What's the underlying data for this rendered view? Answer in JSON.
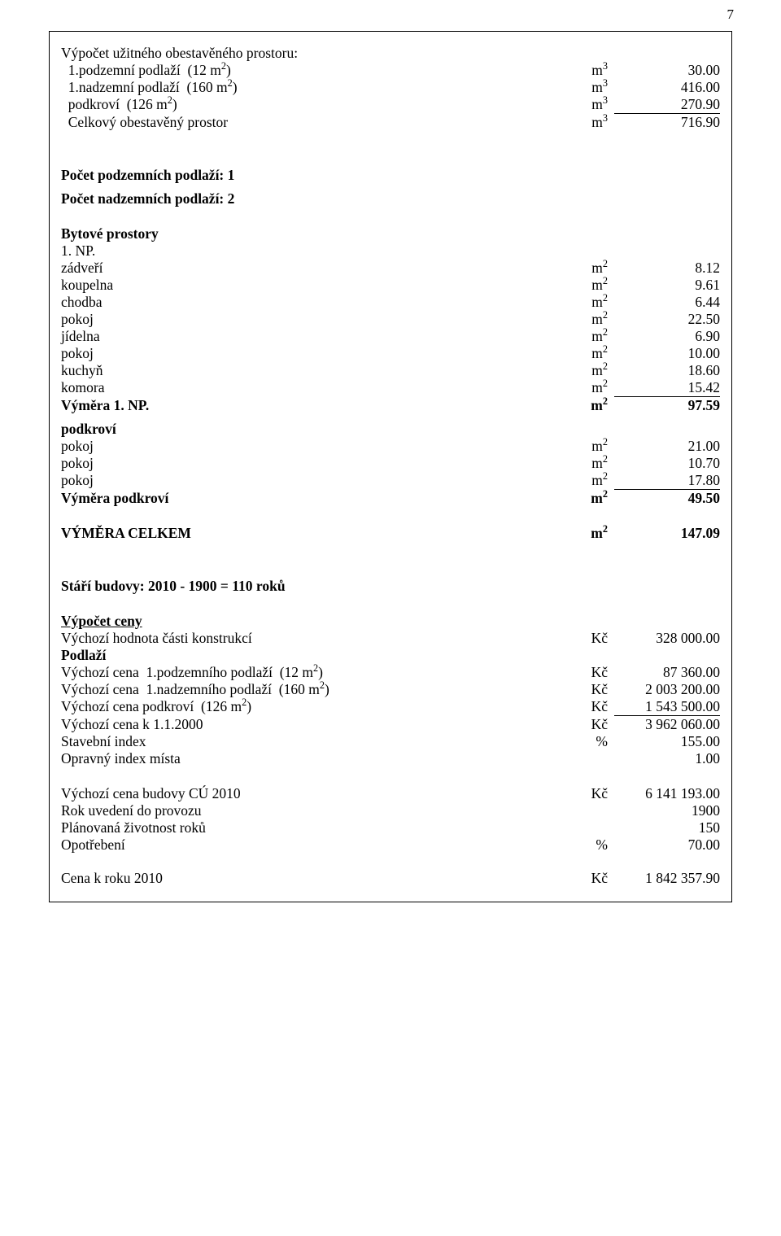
{
  "page_number": "7",
  "section1": {
    "title": "Výpočet užitného obestavěného prostoru:",
    "rows": [
      {
        "label": "  1.podzemní podlaží  (12 m²)",
        "unit": "m³",
        "val": "30.00"
      },
      {
        "label": "  1.nadzemní podlaží  (160 m²)",
        "unit": "m³",
        "val": "416.00"
      },
      {
        "label": "  podkroví  (126 m²)",
        "unit": "m³",
        "val": "270.90"
      },
      {
        "label": "  Celkový obestavěný prostor",
        "unit": "m³",
        "val": "716.90"
      }
    ]
  },
  "counts": {
    "under": "Počet podzemních podlaží: 1",
    "over": "Počet nadzemních podlaží: 2"
  },
  "rooms": {
    "title": "Bytové prostory",
    "np_label": "1. NP.",
    "np_rows": [
      {
        "label": "zádveří",
        "unit": "m²",
        "val": "8.12"
      },
      {
        "label": "koupelna",
        "unit": "m²",
        "val": "9.61"
      },
      {
        "label": "chodba",
        "unit": "m²",
        "val": "6.44"
      },
      {
        "label": "pokoj",
        "unit": "m²",
        "val": "22.50"
      },
      {
        "label": "jídelna",
        "unit": "m²",
        "val": "6.90"
      },
      {
        "label": "pokoj",
        "unit": "m²",
        "val": "10.00"
      },
      {
        "label": "kuchyň",
        "unit": "m²",
        "val": "18.60"
      },
      {
        "label": "komora",
        "unit": "m²",
        "val": "15.42"
      }
    ],
    "np_total": {
      "label": "Výměra 1. NP.",
      "unit": "m²",
      "val": "97.59"
    },
    "attic_label": "podkroví",
    "attic_rows": [
      {
        "label": "pokoj",
        "unit": "m²",
        "val": "21.00"
      },
      {
        "label": "pokoj",
        "unit": "m²",
        "val": "10.70"
      },
      {
        "label": "pokoj",
        "unit": "m²",
        "val": "17.80"
      }
    ],
    "attic_total": {
      "label": "Výměra podkroví",
      "unit": "m²",
      "val": "49.50"
    },
    "grand_total": {
      "label": "VÝMĚRA CELKEM",
      "unit": "m²",
      "val": "147.09"
    }
  },
  "age_line": "Stáří budovy: 2010 - 1900 = 110 roků",
  "calc": {
    "title": "Výpočet ceny",
    "rows": [
      {
        "label": "Výchozí hodnota části konstrukcí",
        "unit": "Kč",
        "val": "328 000.00",
        "bold_label": false
      },
      {
        "label": "Podlaží",
        "unit": "",
        "val": "",
        "bold_label": true
      },
      {
        "label": "Výchozí cena  1.podzemního podlaží  (12 m²)",
        "unit": "Kč",
        "val": "87 360.00"
      },
      {
        "label": "Výchozí cena  1.nadzemního podlaží  (160 m²)",
        "unit": "Kč",
        "val": "2 003 200.00"
      },
      {
        "label": "Výchozí cena podkroví  (126 m²)",
        "unit": "Kč",
        "val": "1 543 500.00",
        "underline": true
      },
      {
        "label": "Výchozí cena k 1.1.2000",
        "unit": "Kč",
        "val": "3 962 060.00"
      },
      {
        "label": "Stavební index",
        "unit": "%",
        "val": "155.00"
      },
      {
        "label": "Opravný index místa",
        "unit": "",
        "val": "1.00"
      }
    ],
    "rows2": [
      {
        "label": "Výchozí cena budovy CÚ 2010",
        "unit": "Kč",
        "val": "6 141 193.00"
      },
      {
        "label": "Rok uvedení do provozu",
        "unit": "",
        "val": "1900"
      },
      {
        "label": "Plánovaná životnost roků",
        "unit": "",
        "val": "150"
      },
      {
        "label": "Opotřebení",
        "unit": "%",
        "val": "70.00"
      }
    ],
    "final": {
      "label": "Cena k roku 2010",
      "unit": "Kč",
      "val": "1 842 357.90"
    }
  }
}
